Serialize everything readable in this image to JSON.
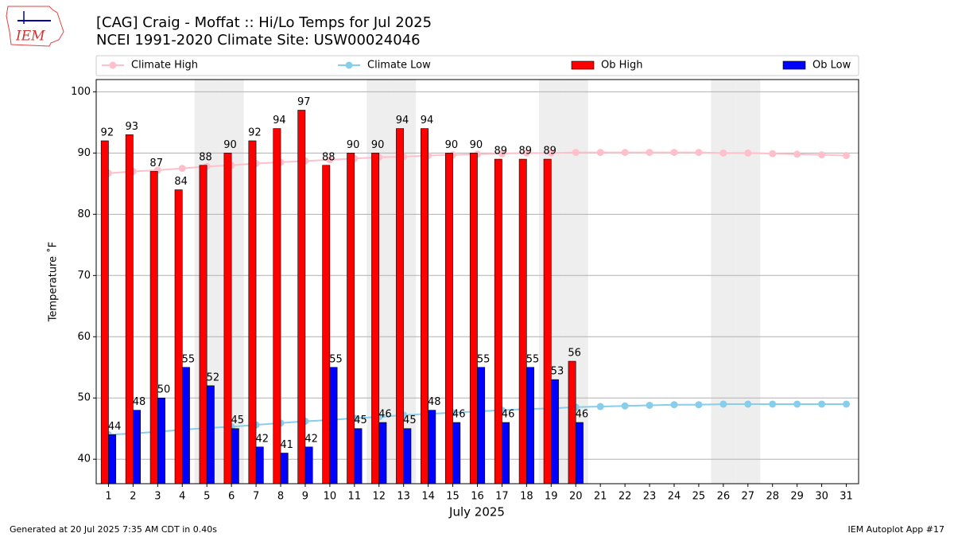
{
  "chart_data": {
    "type": "bar",
    "logo_text": "IEM",
    "title": "[CAG] Craig - Moffat :: Hi/Lo Temps for Jul 2025",
    "subtitle": "NCEI 1991-2020 Climate Site: USW00024046",
    "xlabel": "July 2025",
    "ylabel": "Temperature ˚F",
    "footer_left": "Generated at 20 Jul 2025 7:35 AM CDT in 0.40s",
    "footer_right": "IEM Autoplot App #17",
    "x": [
      1,
      2,
      3,
      4,
      5,
      6,
      7,
      8,
      9,
      10,
      11,
      12,
      13,
      14,
      15,
      16,
      17,
      18,
      19,
      20,
      21,
      22,
      23,
      24,
      25,
      26,
      27,
      28,
      29,
      30,
      31
    ],
    "xlim": [
      0.5,
      31.5
    ],
    "xticks": [
      1,
      2,
      3,
      4,
      5,
      6,
      7,
      8,
      9,
      10,
      11,
      12,
      13,
      14,
      15,
      16,
      17,
      18,
      19,
      20,
      21,
      22,
      23,
      24,
      25,
      26,
      27,
      28,
      29,
      30,
      31
    ],
    "ylim": [
      36,
      102
    ],
    "yticks": [
      40,
      50,
      60,
      70,
      80,
      90,
      100
    ],
    "grid": true,
    "weekend_days": [
      5,
      6,
      12,
      13,
      19,
      20,
      26,
      27
    ],
    "series": [
      {
        "name": "Climate High",
        "kind": "line",
        "color": "#ffc0cb",
        "values": [
          86.7,
          87.0,
          87.2,
          87.5,
          87.8,
          88.0,
          88.3,
          88.5,
          88.7,
          88.9,
          89.1,
          89.3,
          89.4,
          89.6,
          89.7,
          89.8,
          89.9,
          90.0,
          90.0,
          90.1,
          90.1,
          90.1,
          90.1,
          90.1,
          90.1,
          90.0,
          90.0,
          89.9,
          89.8,
          89.7,
          89.6
        ]
      },
      {
        "name": "Climate Low",
        "kind": "line",
        "color": "#87ceeb",
        "values": [
          44.0,
          44.2,
          44.5,
          44.8,
          45.1,
          45.3,
          45.6,
          45.9,
          46.2,
          46.4,
          46.7,
          46.9,
          47.2,
          47.4,
          47.6,
          47.8,
          48.0,
          48.2,
          48.3,
          48.5,
          48.6,
          48.7,
          48.8,
          48.9,
          48.9,
          49.0,
          49.0,
          49.0,
          49.0,
          49.0,
          49.0
        ]
      },
      {
        "name": "Ob High",
        "kind": "bar",
        "color": "#ff0000",
        "values": [
          92,
          93,
          87,
          84,
          88,
          90,
          92,
          94,
          97,
          88,
          90,
          90,
          94,
          94,
          90,
          90,
          89,
          89,
          89,
          56,
          null,
          null,
          null,
          null,
          null,
          null,
          null,
          null,
          null,
          null,
          null
        ]
      },
      {
        "name": "Ob Low",
        "kind": "bar",
        "color": "#0000ff",
        "values": [
          44,
          48,
          50,
          55,
          52,
          45,
          42,
          41,
          42,
          55,
          45,
          46,
          45,
          48,
          46,
          55,
          46,
          55,
          53,
          46,
          null,
          null,
          null,
          null,
          null,
          null,
          null,
          null,
          null,
          null,
          null
        ]
      }
    ]
  }
}
